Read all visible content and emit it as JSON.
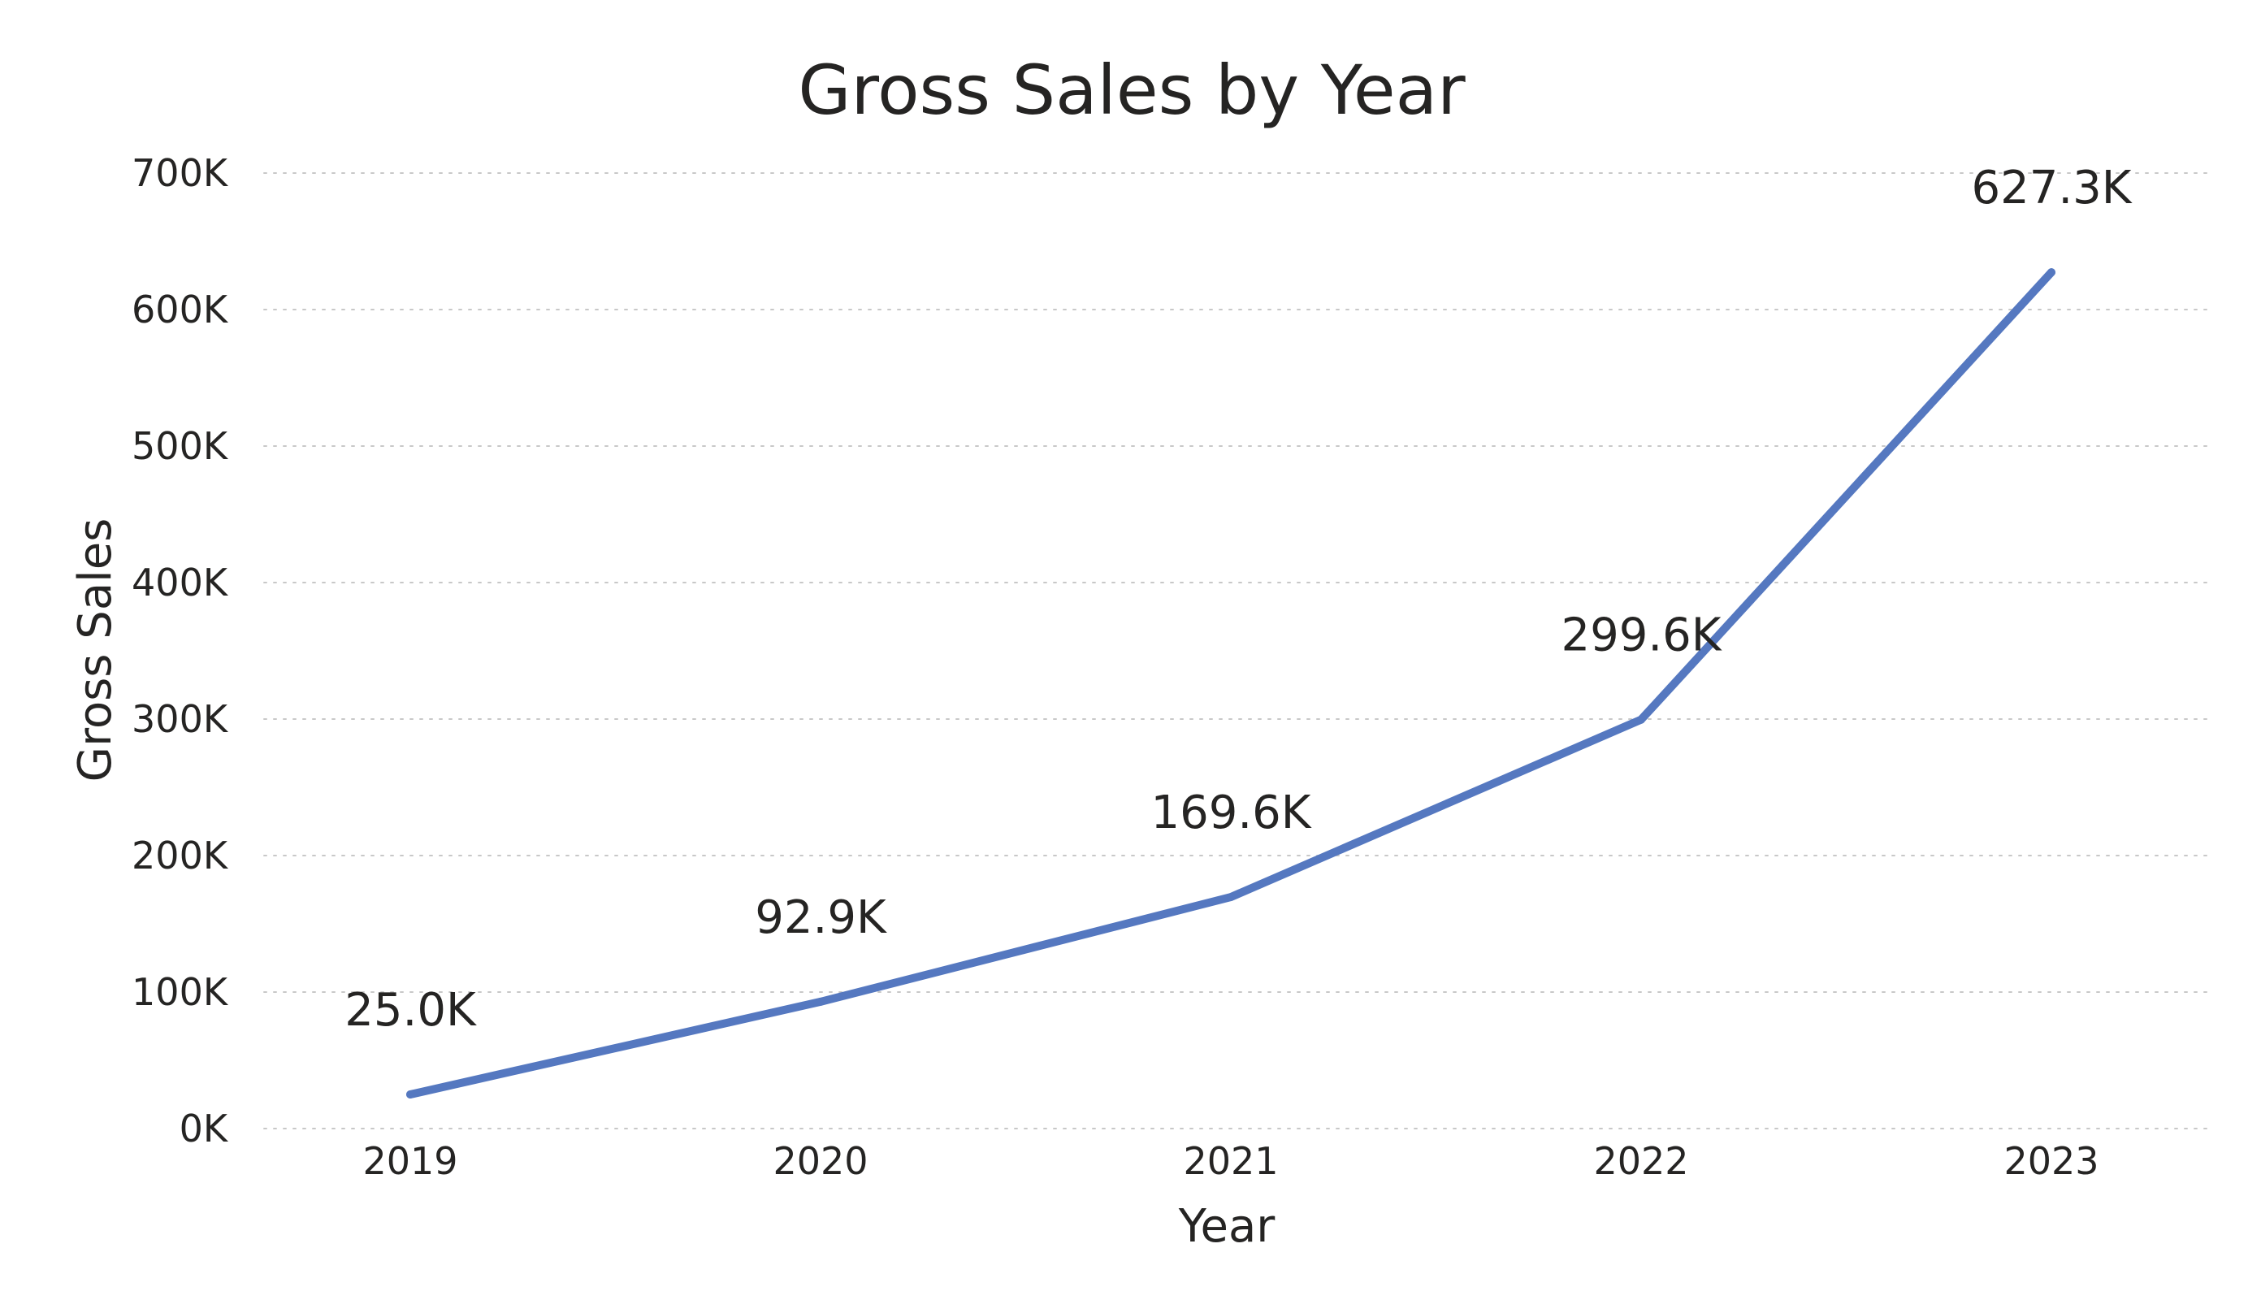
{
  "chart_data": {
    "type": "line",
    "title": "Gross Sales by Year",
    "xlabel": "Year",
    "ylabel": "Gross Sales",
    "categories": [
      "2019",
      "2020",
      "2021",
      "2022",
      "2023"
    ],
    "series": [
      {
        "values": [
          25000,
          92900,
          169600,
          299600,
          627300
        ],
        "data_labels": [
          "25.0K",
          "92.9K",
          "169.6K",
          "299.6K",
          "627.3K"
        ]
      }
    ],
    "ylim": [
      0,
      700000
    ],
    "yticks": [
      0,
      100000,
      200000,
      300000,
      400000,
      500000,
      600000,
      700000
    ],
    "ytick_labels": [
      "0K",
      "100K",
      "200K",
      "300K",
      "400K",
      "500K",
      "600K",
      "700K"
    ],
    "grid": true,
    "colors": {
      "line": "#5578C0"
    }
  }
}
